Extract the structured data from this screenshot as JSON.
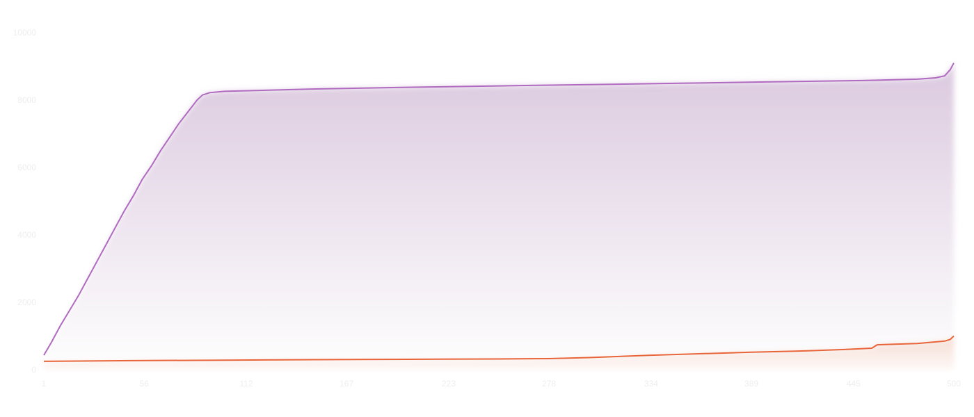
{
  "chart_data": {
    "type": "area",
    "xlim": [
      1,
      500
    ],
    "ylim": [
      0,
      10000
    ],
    "x_ticks": [
      "1",
      "56",
      "112",
      "167",
      "223",
      "278",
      "334",
      "389",
      "445",
      "500"
    ],
    "y_ticks": [
      "0",
      "2000",
      "4000",
      "6000",
      "8000",
      "10000"
    ],
    "grid": false,
    "series": [
      {
        "color": "#b06ac0",
        "x": [
          1,
          5,
          10,
          15,
          20,
          25,
          30,
          35,
          40,
          45,
          50,
          55,
          60,
          65,
          70,
          75,
          80,
          85,
          88,
          92,
          100,
          150,
          200,
          250,
          300,
          350,
          400,
          450,
          480,
          490,
          495,
          498,
          500
        ],
        "y": [
          430,
          800,
          1300,
          1750,
          2200,
          2700,
          3200,
          3700,
          4200,
          4700,
          5150,
          5650,
          6050,
          6500,
          6900,
          7300,
          7650,
          8000,
          8150,
          8220,
          8260,
          8330,
          8380,
          8420,
          8460,
          8500,
          8540,
          8580,
          8620,
          8660,
          8720,
          8900,
          9100
        ]
      },
      {
        "color": "#e8653a",
        "x": [
          1,
          50,
          100,
          150,
          200,
          250,
          278,
          300,
          334,
          389,
          420,
          440,
          455,
          458,
          480,
          495,
          498,
          500
        ],
        "y": [
          250,
          270,
          285,
          300,
          310,
          320,
          330,
          360,
          430,
          520,
          560,
          600,
          640,
          740,
          780,
          850,
          900,
          1000
        ]
      }
    ]
  }
}
